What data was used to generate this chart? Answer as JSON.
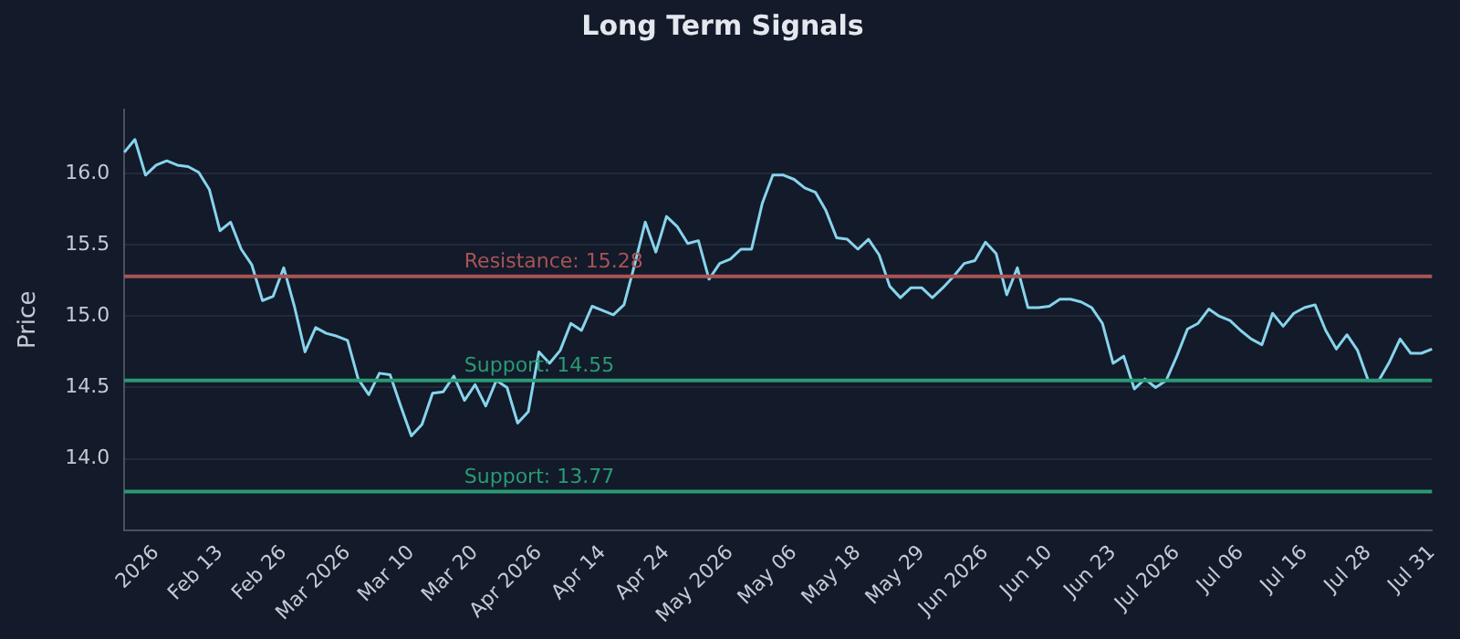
{
  "chart_data": {
    "type": "line",
    "title": "Long Term Signals",
    "ylabel": "Price",
    "categories": [
      null,
      null,
      null,
      "2026",
      null,
      null,
      null,
      null,
      null,
      "Feb 13",
      null,
      null,
      null,
      null,
      null,
      "Feb 26",
      null,
      null,
      null,
      null,
      null,
      "Mar 2026",
      null,
      null,
      null,
      null,
      null,
      "Mar 10",
      null,
      null,
      null,
      null,
      null,
      "Mar 20",
      null,
      null,
      null,
      null,
      null,
      "Apr 2026",
      null,
      null,
      null,
      null,
      null,
      "Apr 14",
      null,
      null,
      null,
      null,
      null,
      "Apr 24",
      null,
      null,
      null,
      null,
      null,
      "May 2026",
      null,
      null,
      null,
      null,
      null,
      "May 06",
      null,
      null,
      null,
      null,
      null,
      "May 18",
      null,
      null,
      null,
      null,
      null,
      "May 29",
      null,
      null,
      null,
      null,
      null,
      "Jun 2026",
      null,
      null,
      null,
      null,
      null,
      "Jun 10",
      null,
      null,
      null,
      null,
      null,
      "Jun 23",
      null,
      null,
      null,
      null,
      null,
      "Jul 2026",
      null,
      null,
      null,
      null,
      null,
      "Jul 06",
      null,
      null,
      null,
      null,
      null,
      "Jul 16",
      null,
      null,
      null,
      null,
      null,
      "Jul 28",
      null,
      null,
      null,
      null,
      null,
      "Jul 31"
    ],
    "series": [
      {
        "color": "#86d4ec",
        "values": [
          16.15,
          16.24,
          15.99,
          16.06,
          16.09,
          16.06,
          16.05,
          16.01,
          15.89,
          15.6,
          15.66,
          15.47,
          15.36,
          15.11,
          15.14,
          15.34,
          15.07,
          14.75,
          14.92,
          14.88,
          14.86,
          14.83,
          14.56,
          14.45,
          14.6,
          14.59,
          14.37,
          14.16,
          14.24,
          14.46,
          14.47,
          14.58,
          14.41,
          14.52,
          14.37,
          14.55,
          14.5,
          14.25,
          14.33,
          14.75,
          14.67,
          14.76,
          14.95,
          14.9,
          15.07,
          15.04,
          15.01,
          15.08,
          15.36,
          15.66,
          15.45,
          15.7,
          15.63,
          15.51,
          15.53,
          15.26,
          15.37,
          15.4,
          15.47,
          15.47,
          15.79,
          15.99,
          15.99,
          15.96,
          15.9,
          15.87,
          15.74,
          15.55,
          15.54,
          15.47,
          15.54,
          15.43,
          15.21,
          15.13,
          15.2,
          15.2,
          15.13,
          15.2,
          15.28,
          15.37,
          15.39,
          15.52,
          15.44,
          15.15,
          15.34,
          15.06,
          15.06,
          15.07,
          15.12,
          15.12,
          15.1,
          15.06,
          14.95,
          14.67,
          14.72,
          14.49,
          14.56,
          14.5,
          14.55,
          14.72,
          14.91,
          14.95,
          15.05,
          15.0,
          14.97,
          14.9,
          14.84,
          14.8,
          15.02,
          14.93,
          15.02,
          15.06,
          15.08,
          14.9,
          14.77,
          14.87,
          14.76,
          14.55,
          14.55,
          14.68,
          14.84,
          14.74,
          14.74,
          14.77
        ]
      }
    ],
    "ylim": [
      13.5,
      16.45
    ],
    "yticks": [
      {
        "value": 14,
        "label": "14.0"
      },
      14.5,
      {
        "value": 15,
        "label": "15.0"
      },
      15.5,
      {
        "value": 16,
        "label": "16.0"
      }
    ],
    "grid": "y",
    "legend": false,
    "marker": "none",
    "line_style": "solid",
    "ref_lines": [
      {
        "axis": "y",
        "value": 15.28,
        "label": "Resistance: 15.28",
        "color": "#a85456"
      },
      {
        "axis": "y",
        "value": 14.55,
        "label": "Support: 14.55",
        "color": "#2a9a74"
      },
      {
        "axis": "y",
        "value": 13.77,
        "label": "Support: 13.77",
        "color": "#2a9a74"
      }
    ]
  }
}
